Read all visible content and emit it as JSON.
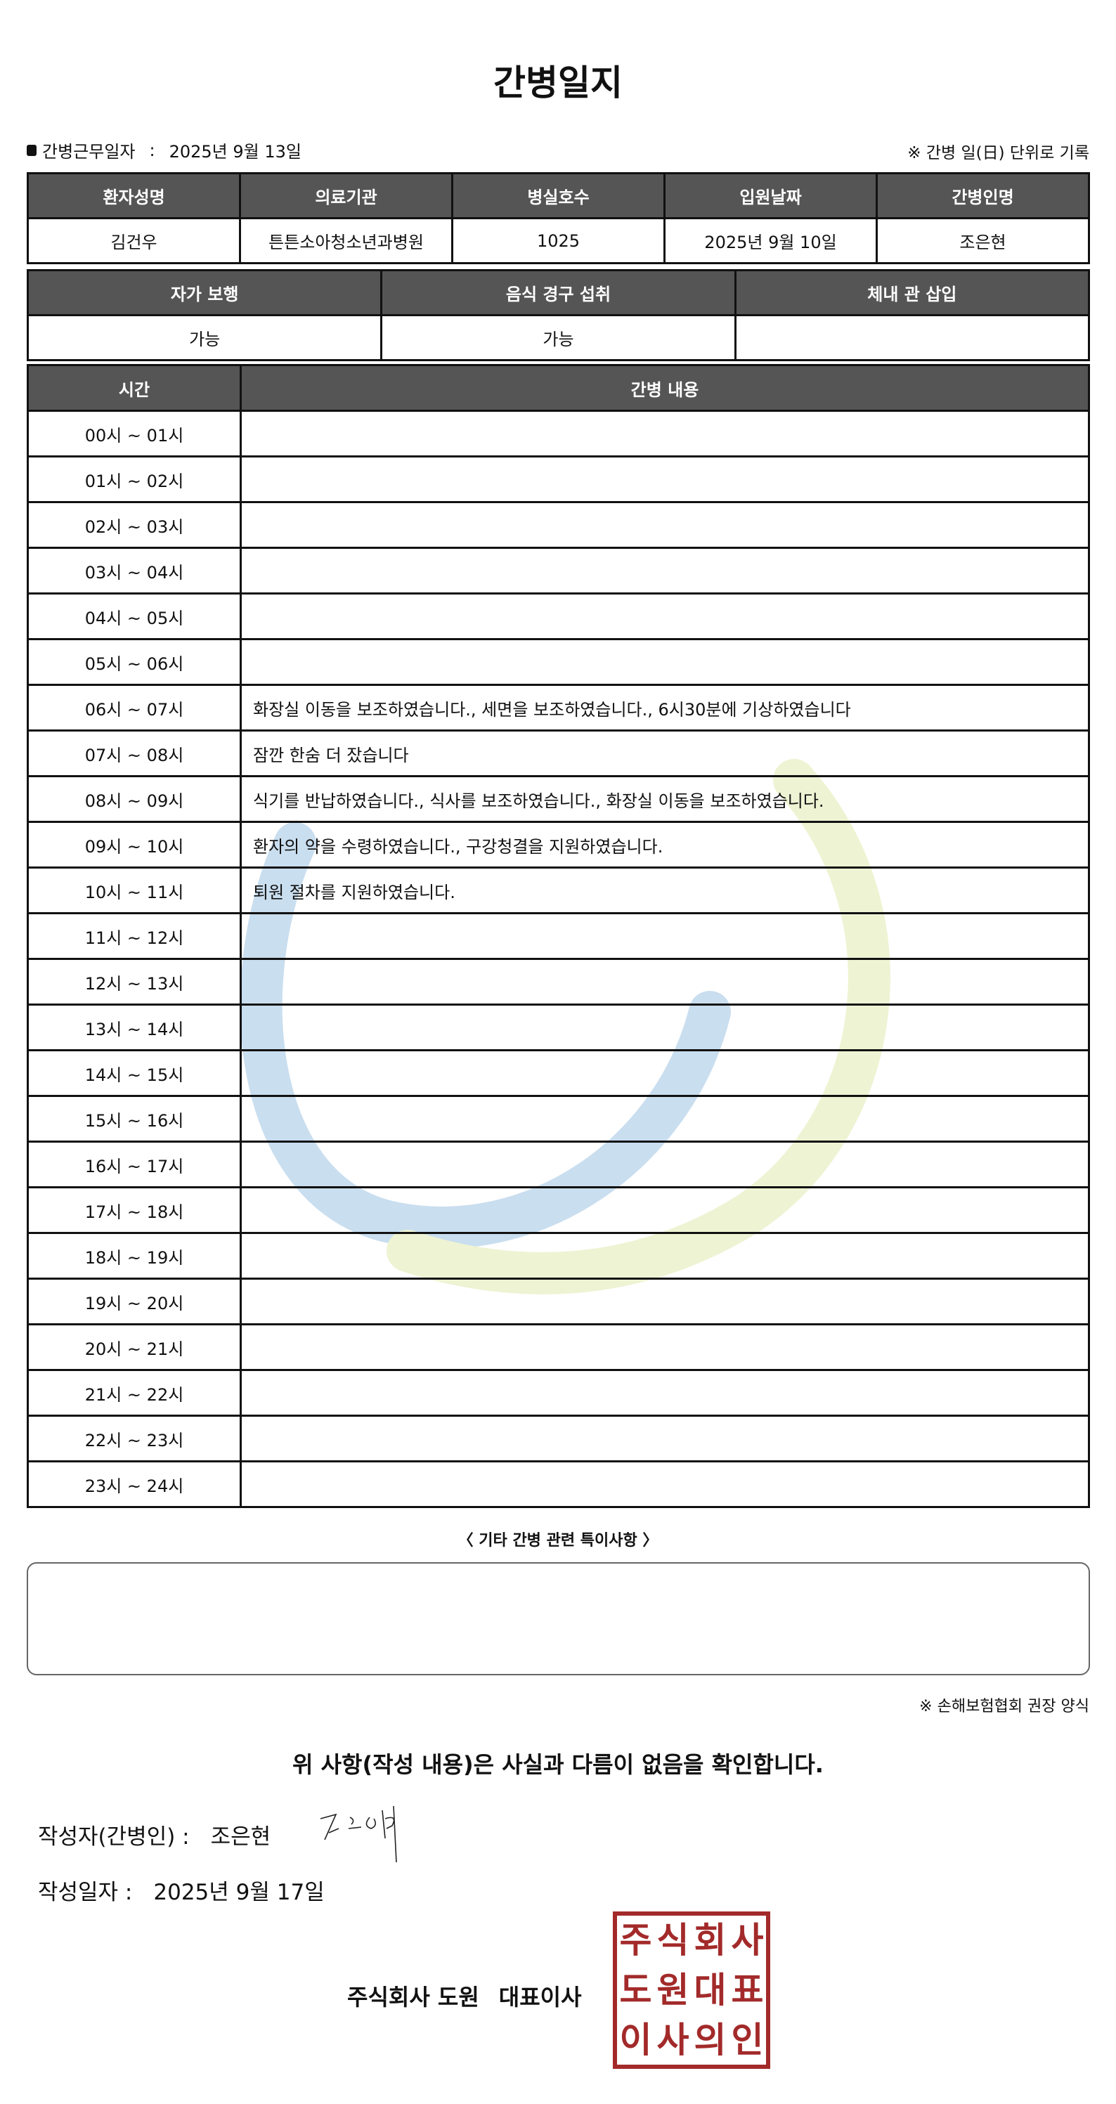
{
  "title": "간병일지",
  "work_date": {
    "label": "간병근무일자",
    "separator": ":",
    "value": "2025년 9월 13일"
  },
  "unit_note": "※ 간병 일(日) 단위로 기록",
  "patient_table": {
    "headers": [
      "환자성명",
      "의료기관",
      "병실호수",
      "입원날짜",
      "간병인명"
    ],
    "values": [
      "김건우",
      "튼튼소아청소년과병원",
      "1025",
      "2025년 9월 10일",
      "조은현"
    ]
  },
  "status_table": {
    "headers": [
      "자가 보행",
      "음식 경구 섭취",
      "체내 관 삽입"
    ],
    "values": [
      "가능",
      "가능",
      ""
    ]
  },
  "log_table": {
    "headers": [
      "시간",
      "간병 내용"
    ],
    "rows": [
      {
        "time": "00시 ~ 01시",
        "content": ""
      },
      {
        "time": "01시 ~ 02시",
        "content": ""
      },
      {
        "time": "02시 ~ 03시",
        "content": ""
      },
      {
        "time": "03시 ~ 04시",
        "content": ""
      },
      {
        "time": "04시 ~ 05시",
        "content": ""
      },
      {
        "time": "05시 ~ 06시",
        "content": ""
      },
      {
        "time": "06시 ~ 07시",
        "content": "화장실 이동을 보조하였습니다., 세면을 보조하였습니다., 6시30분에 기상하였습니다"
      },
      {
        "time": "07시 ~ 08시",
        "content": "잠깐 한숨 더 잤습니다"
      },
      {
        "time": "08시 ~ 09시",
        "content": "식기를 반납하였습니다., 식사를 보조하였습니다., 화장실 이동을 보조하였습니다."
      },
      {
        "time": "09시 ~ 10시",
        "content": "환자의 약을 수령하였습니다., 구강청결을 지원하였습니다."
      },
      {
        "time": "10시 ~ 11시",
        "content": "퇴원 절차를 지원하였습니다."
      },
      {
        "time": "11시 ~ 12시",
        "content": ""
      },
      {
        "time": "12시 ~ 13시",
        "content": ""
      },
      {
        "time": "13시 ~ 14시",
        "content": ""
      },
      {
        "time": "14시 ~ 15시",
        "content": ""
      },
      {
        "time": "15시 ~ 16시",
        "content": ""
      },
      {
        "time": "16시 ~ 17시",
        "content": ""
      },
      {
        "time": "17시 ~ 18시",
        "content": ""
      },
      {
        "time": "18시 ~ 19시",
        "content": ""
      },
      {
        "time": "19시 ~ 20시",
        "content": ""
      },
      {
        "time": "20시 ~ 21시",
        "content": ""
      },
      {
        "time": "21시 ~ 22시",
        "content": ""
      },
      {
        "time": "22시 ~ 23시",
        "content": ""
      },
      {
        "time": "23시 ~ 24시",
        "content": ""
      }
    ]
  },
  "notes": {
    "label": "〈 기타 간병 관련 특이사항 〉",
    "value": ""
  },
  "form_note": "※ 손해보험협회 권장 양식",
  "confirmation": "위 사항(작성 내용)은 사실과 다름이 없음을 확인합니다.",
  "writer": {
    "label": "작성자(간병인) :",
    "value": "조은현"
  },
  "written_date": {
    "label": "작성일자 :",
    "value": "2025년 9월 17일"
  },
  "company": {
    "name": "주식회사 도원",
    "title": "대표이사"
  },
  "stamp": {
    "text": "주식회사도원대표이사의인",
    "color": "#a32a2a"
  },
  "colors": {
    "header_bg": "#555555",
    "watermark_blue": "#c9deef",
    "watermark_green": "#eef3d3"
  }
}
